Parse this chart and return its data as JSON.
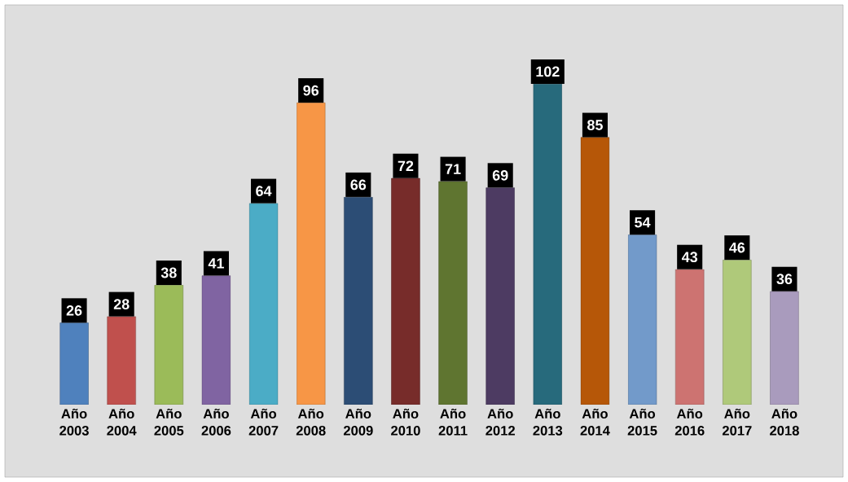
{
  "chart_data": {
    "type": "bar",
    "categories": [
      "Año 2003",
      "Año 2004",
      "Año 2005",
      "Año 2006",
      "Año 2007",
      "Año 2008",
      "Año 2009",
      "Año 2010",
      "Año 2011",
      "Año 2012",
      "Año 2013",
      "Año 2014",
      "Año 2015",
      "Año 2016",
      "Año 2017",
      "Año 2018"
    ],
    "values": [
      26,
      28,
      38,
      41,
      64,
      96,
      66,
      72,
      71,
      69,
      102,
      85,
      54,
      43,
      46,
      36
    ],
    "colors": [
      "#4f81bd",
      "#c0504d",
      "#9bbb59",
      "#8064a2",
      "#4bacc6",
      "#f79646",
      "#2c4d75",
      "#772c2a",
      "#5f7530",
      "#4d3b62",
      "#276a7c",
      "#b65708",
      "#729aca",
      "#cd7371",
      "#afc97a",
      "#a99bbd"
    ],
    "data_labels": true
  }
}
